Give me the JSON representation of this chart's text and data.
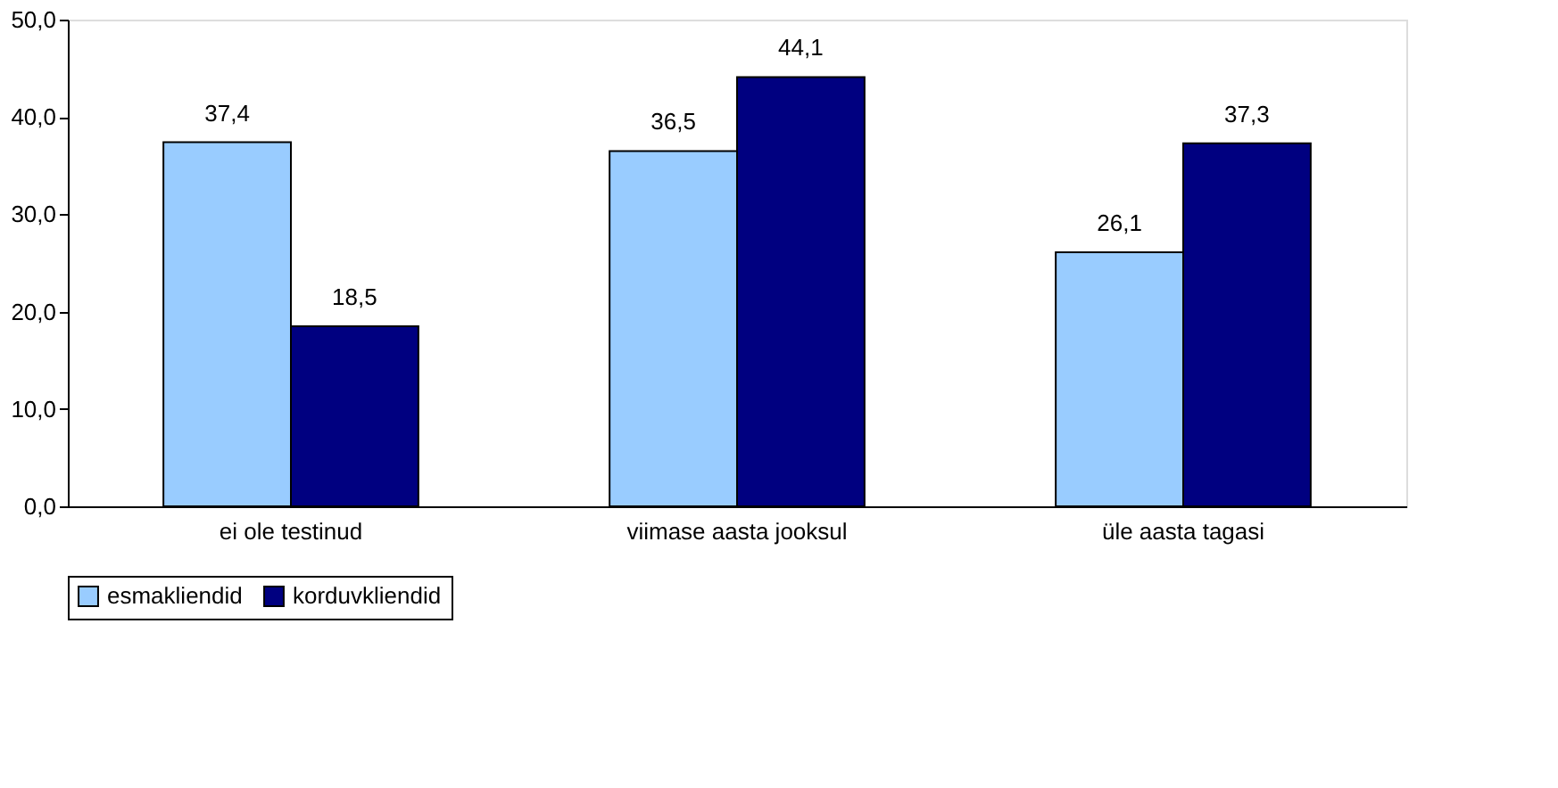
{
  "chart_data": {
    "type": "bar",
    "categories": [
      "ei ole testinud",
      "viimase aasta jooksul",
      "üle aasta tagasi"
    ],
    "series": [
      {
        "name": "esmakliendid",
        "color": "#99ccff",
        "values": [
          37.4,
          36.5,
          26.1
        ],
        "value_labels": [
          "37,4",
          "36,5",
          "26,1"
        ]
      },
      {
        "name": "korduvkliendid",
        "color": "#000080",
        "values": [
          18.5,
          44.1,
          37.3
        ],
        "value_labels": [
          "18,5",
          "44,1",
          "37,3"
        ]
      }
    ],
    "ylim": [
      0,
      50
    ],
    "yticks": [
      {
        "value": 0,
        "label": "0,0"
      },
      {
        "value": 10,
        "label": "10,0"
      },
      {
        "value": 20,
        "label": "20,0"
      },
      {
        "value": 30,
        "label": "30,0"
      },
      {
        "value": 40,
        "label": "40,0"
      },
      {
        "value": 50,
        "label": "50,0"
      }
    ],
    "grid": false,
    "legend": "bottom"
  }
}
